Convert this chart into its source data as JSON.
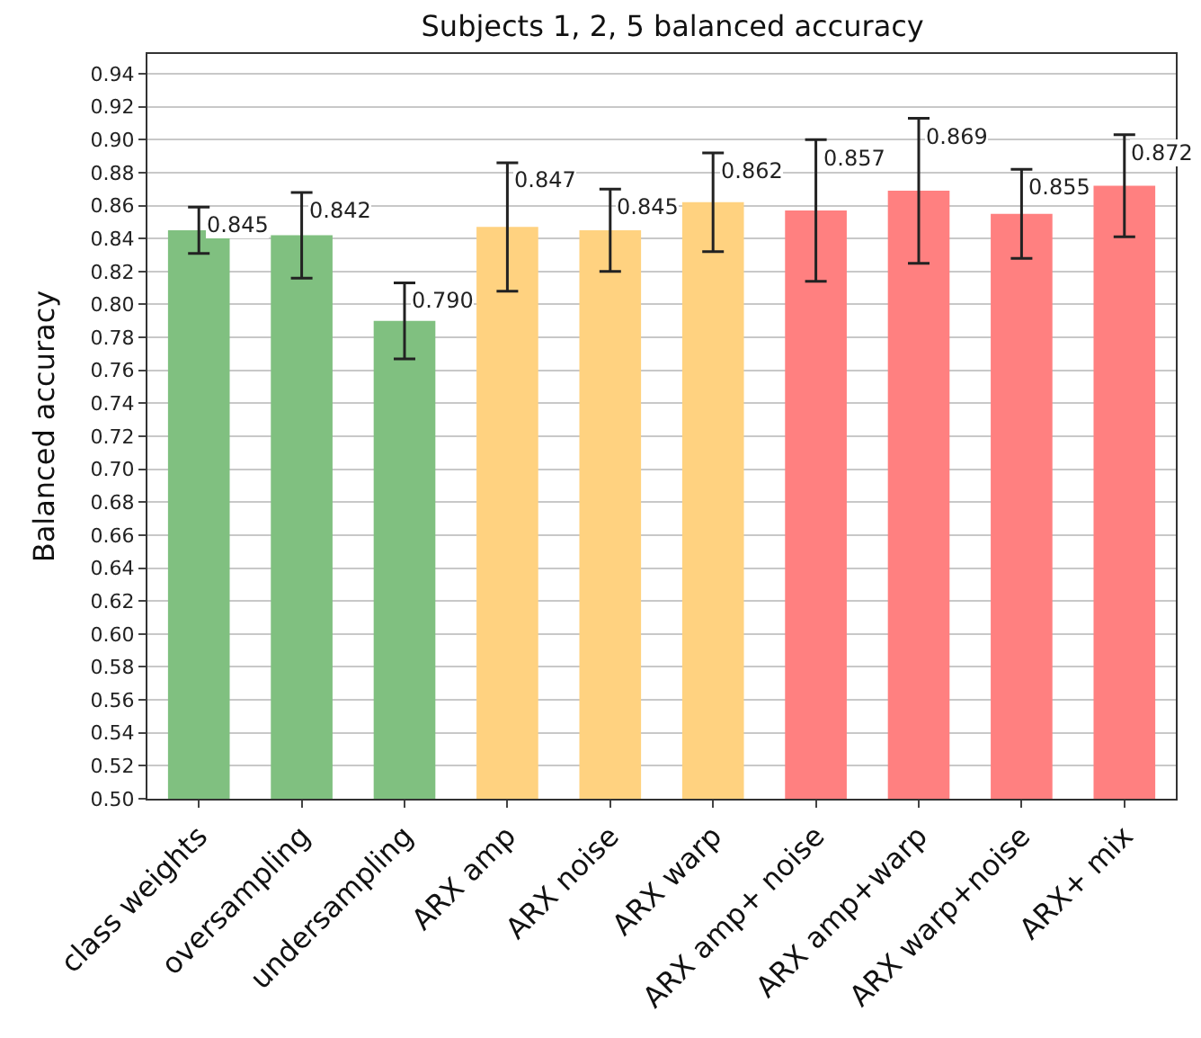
{
  "chart_data": {
    "type": "bar",
    "title": "Subjects 1, 2, 5 balanced accuracy",
    "ylabel": "Balanced accuracy",
    "categories": [
      "class weights",
      "oversampling",
      "undersampling",
      "ARX amp",
      "ARX noise",
      "ARX warp",
      "ARX amp+ noise",
      "ARX amp+warp",
      "ARX warp+noise",
      "ARX+ mix"
    ],
    "values": [
      0.845,
      0.842,
      0.79,
      0.847,
      0.845,
      0.862,
      0.857,
      0.869,
      0.855,
      0.872
    ],
    "errors": [
      0.014,
      0.026,
      0.023,
      0.039,
      0.025,
      0.03,
      0.043,
      0.044,
      0.027,
      0.031
    ],
    "colors": [
      "#80c080",
      "#80c080",
      "#80c080",
      "#ffd280",
      "#ffd280",
      "#ffd280",
      "#ff8080",
      "#ff8080",
      "#ff8080",
      "#ff8080"
    ],
    "value_labels": [
      "0.845",
      "0.842",
      "0.790",
      "0.847",
      "0.845",
      "0.862",
      "0.857",
      "0.869",
      "0.855",
      "0.872"
    ],
    "grid": "y",
    "ylim": [
      0.5,
      0.952
    ],
    "yticks": [
      {
        "value": 0.5,
        "label": "0.50"
      },
      0.52,
      0.54,
      0.56,
      0.58,
      {
        "value": 0.6,
        "label": "0.60"
      },
      0.62,
      0.64,
      0.66,
      0.68,
      {
        "value": 0.7,
        "label": "0.70"
      },
      0.72,
      0.74,
      0.76,
      0.78,
      {
        "value": 0.8,
        "label": "0.80"
      },
      0.82,
      0.84,
      0.86,
      0.88,
      {
        "value": 0.9,
        "label": "0.90"
      },
      0.92,
      0.94
    ]
  }
}
